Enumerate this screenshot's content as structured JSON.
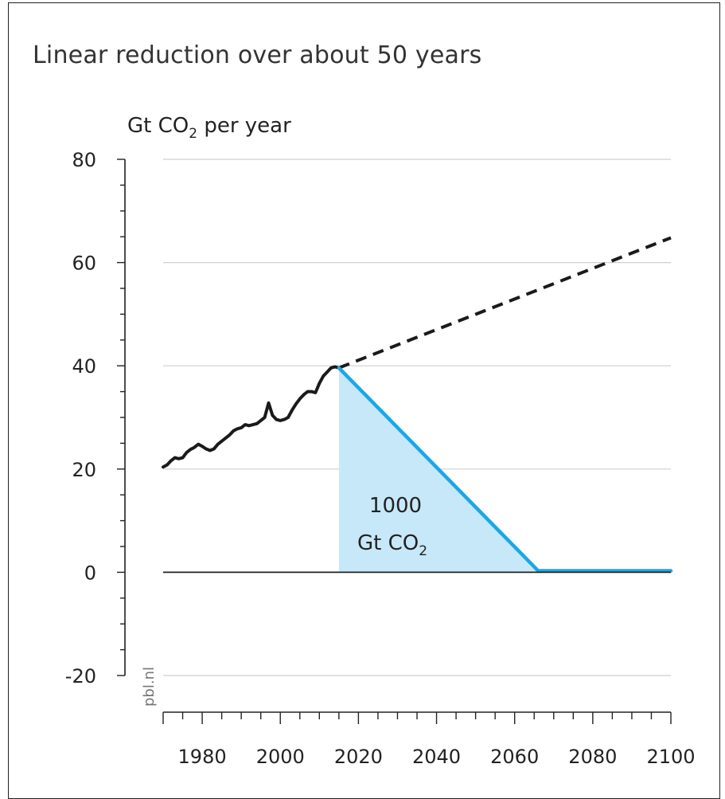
{
  "chart_data": {
    "type": "line",
    "title": "Linear reduction over about 50 years",
    "ylabel": "Gt CO",
    "ylabel_sub": "2",
    "ylabel_suffix": " per year",
    "xlim": [
      1970,
      2100
    ],
    "ylim": [
      -20,
      80
    ],
    "y_ticks": [
      -20,
      0,
      20,
      40,
      60,
      80
    ],
    "x_ticks": [
      1980,
      2000,
      2020,
      2040,
      2060,
      2080,
      2100
    ],
    "grid": true,
    "credit": "pbl.nl",
    "area_label_line1": "1000",
    "area_label_line2": "Gt CO",
    "area_label_sub": "2",
    "series": [
      {
        "role": "historical",
        "color": "#1a1a1a",
        "style": "solid",
        "points": [
          [
            1970,
            20.4
          ],
          [
            1971,
            20.8
          ],
          [
            1972,
            21.6
          ],
          [
            1973,
            22.2
          ],
          [
            1974,
            22.0
          ],
          [
            1975,
            22.2
          ],
          [
            1976,
            23.2
          ],
          [
            1977,
            23.8
          ],
          [
            1978,
            24.2
          ],
          [
            1979,
            24.8
          ],
          [
            1980,
            24.4
          ],
          [
            1981,
            23.9
          ],
          [
            1982,
            23.6
          ],
          [
            1983,
            23.9
          ],
          [
            1984,
            24.8
          ],
          [
            1985,
            25.4
          ],
          [
            1986,
            26.0
          ],
          [
            1987,
            26.6
          ],
          [
            1988,
            27.4
          ],
          [
            1989,
            27.8
          ],
          [
            1990,
            28.0
          ],
          [
            1991,
            28.6
          ],
          [
            1992,
            28.4
          ],
          [
            1993,
            28.6
          ],
          [
            1994,
            28.8
          ],
          [
            1995,
            29.4
          ],
          [
            1996,
            30.0
          ],
          [
            1997,
            32.8
          ],
          [
            1998,
            30.4
          ],
          [
            1999,
            29.6
          ],
          [
            2000,
            29.4
          ],
          [
            2001,
            29.6
          ],
          [
            2002,
            30.0
          ],
          [
            2003,
            31.4
          ],
          [
            2004,
            32.6
          ],
          [
            2005,
            33.6
          ],
          [
            2006,
            34.4
          ],
          [
            2007,
            35.0
          ],
          [
            2008,
            35.0
          ],
          [
            2009,
            34.8
          ],
          [
            2010,
            36.6
          ],
          [
            2011,
            38.0
          ],
          [
            2012,
            38.8
          ],
          [
            2013,
            39.6
          ],
          [
            2014,
            39.8
          ],
          [
            2015,
            39.6
          ]
        ]
      },
      {
        "role": "baseline",
        "color": "#1a1a1a",
        "style": "dashed",
        "points": [
          [
            2015,
            39.6
          ],
          [
            2100,
            64.8
          ]
        ]
      },
      {
        "role": "reduction",
        "color": "#1aa7e6",
        "style": "solid",
        "points": [
          [
            2015,
            39.6
          ],
          [
            2066,
            0.3
          ],
          [
            2100,
            0.3
          ]
        ]
      }
    ],
    "area": {
      "color": "#c7e8f8",
      "points": [
        [
          2015,
          39.6
        ],
        [
          2066,
          0
        ],
        [
          2015,
          0
        ]
      ]
    }
  }
}
